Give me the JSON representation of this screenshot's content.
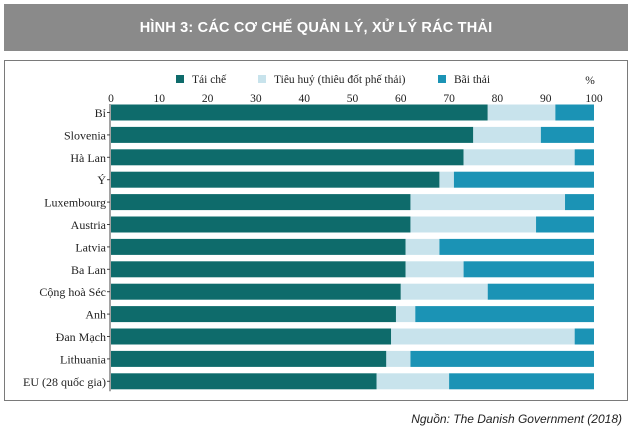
{
  "figure": {
    "title": "HÌNH 3: CÁC CƠ CHẾ QUẢN LÝ, XỬ LÝ RÁC THẢI",
    "source": "Nguồn: The Danish Government (2018)"
  },
  "colors": {
    "header_bg": "#8a8a8a",
    "recycle": "#0e6b6b",
    "incinerate": "#c8e3ec",
    "landfill": "#1b93b5"
  },
  "chart_data": {
    "type": "bar",
    "orientation": "horizontal",
    "stacked": true,
    "unit_label": "%",
    "xlim": [
      0,
      100
    ],
    "x_ticks": [
      "0",
      "10",
      "20",
      "30",
      "40",
      "50",
      "60",
      "70",
      "80",
      "90",
      "100"
    ],
    "categories": [
      "Bỉ",
      "Slovenia",
      "Hà Lan",
      "Ý",
      "Luxembourg",
      "Austria",
      "Latvia",
      "Ba Lan",
      "Cộng hoà Séc",
      "Anh",
      "Đan Mạch",
      "Lithuania",
      "EU (28 quốc gia)"
    ],
    "series": [
      {
        "name": "Tái chế",
        "color": "#0e6b6b",
        "values": [
          78,
          75,
          73,
          68,
          62,
          62,
          61,
          61,
          60,
          59,
          58,
          57,
          55
        ]
      },
      {
        "name": "Tiêu huỷ (thiêu đốt phế thải)",
        "color": "#c8e3ec",
        "values": [
          14,
          14,
          23,
          3,
          32,
          26,
          7,
          12,
          18,
          4,
          38,
          5,
          15
        ]
      },
      {
        "name": "Bãi thải",
        "color": "#1b93b5",
        "values": [
          8,
          11,
          4,
          29,
          6,
          12,
          32,
          27,
          22,
          37,
          4,
          38,
          30
        ]
      }
    ],
    "legend_position": "top",
    "grid": false
  }
}
